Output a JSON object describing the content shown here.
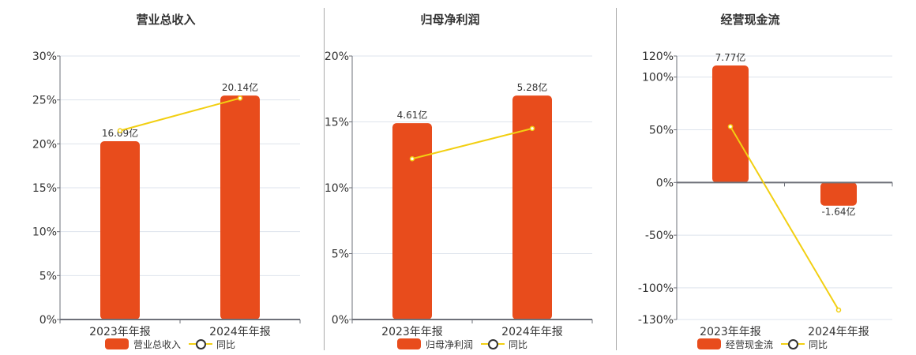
{
  "colors": {
    "bar": "#e84c1c",
    "line": "#f2cf12",
    "grid": "#dde3ec",
    "axis": "#6e7079"
  },
  "legend": {
    "yoy_label": "同比"
  },
  "charts": [
    {
      "title": "营业总收入",
      "bar_label": "营业总收入"
    },
    {
      "title": "归母净利润",
      "bar_label": "归母净利润"
    },
    {
      "title": "经营现金流",
      "bar_label": "经营现金流"
    }
  ],
  "chart_data": [
    {
      "type": "bar+line",
      "title": "营业总收入",
      "categories": [
        "2023年年报",
        "2024年年报"
      ],
      "series": [
        {
          "name": "营业总收入",
          "type": "bar",
          "values": [
            16.09,
            20.14
          ],
          "unit": "亿",
          "labels": [
            "16.09亿",
            "20.14亿"
          ]
        },
        {
          "name": "同比",
          "type": "line",
          "values": [
            21.5,
            25.2
          ],
          "unit": "%"
        }
      ],
      "yaxis": {
        "ticks": [
          "0%",
          "5%",
          "10%",
          "15%",
          "20%",
          "25%",
          "30%"
        ],
        "range": [
          0,
          30
        ]
      },
      "bar_scale_pct": [
        20.3,
        25.5
      ],
      "legend_position": "bottom",
      "grid": true
    },
    {
      "type": "bar+line",
      "title": "归母净利润",
      "categories": [
        "2023年年报",
        "2024年年报"
      ],
      "series": [
        {
          "name": "归母净利润",
          "type": "bar",
          "values": [
            4.61,
            5.28
          ],
          "unit": "亿",
          "labels": [
            "4.61亿",
            "5.28亿"
          ]
        },
        {
          "name": "同比",
          "type": "line",
          "values": [
            12.2,
            14.5
          ],
          "unit": "%"
        }
      ],
      "yaxis": {
        "ticks": [
          "0%",
          "5%",
          "10%",
          "15%",
          "20%"
        ],
        "range": [
          0,
          20
        ]
      },
      "bar_scale_pct": [
        14.9,
        17.0
      ],
      "legend_position": "bottom",
      "grid": true
    },
    {
      "type": "bar+line",
      "title": "经营现金流",
      "categories": [
        "2023年年报",
        "2024年年报"
      ],
      "series": [
        {
          "name": "经营现金流",
          "type": "bar",
          "values": [
            7.77,
            -1.64
          ],
          "unit": "亿",
          "labels": [
            "7.77亿",
            "-1.64亿"
          ]
        },
        {
          "name": "同比",
          "type": "line",
          "values": [
            53,
            -121
          ],
          "unit": "%"
        }
      ],
      "yaxis": {
        "ticks": [
          "-130%",
          "-100%",
          "-50%",
          "0%",
          "50%",
          "100%",
          "120%"
        ],
        "range": [
          -130,
          120
        ]
      },
      "bar_scale_pct": [
        111,
        -22
      ],
      "legend_position": "bottom",
      "grid": true
    }
  ]
}
